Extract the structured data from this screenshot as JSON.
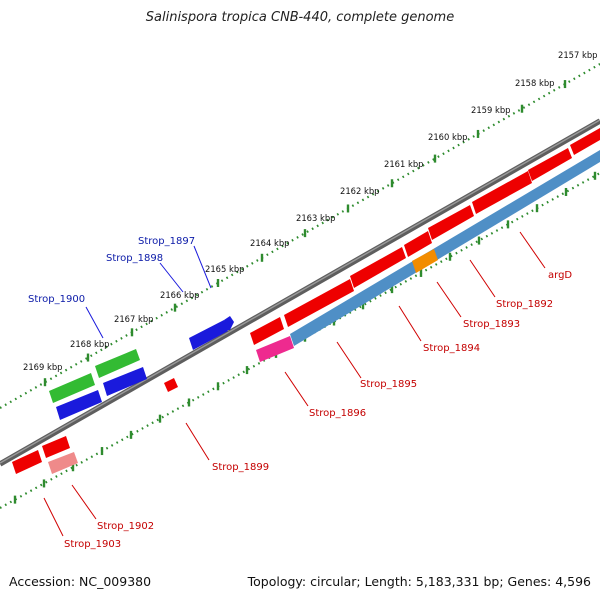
{
  "title": "Salinispora tropica CNB-440, complete genome",
  "footer": {
    "accession": "Accession: NC_009380",
    "summary": "Topology: circular; Length: 5,183,331 bp; Genes: 4,596"
  },
  "scale_labels": [
    "2157 kbp",
    "2158 kbp",
    "2159 kbp",
    "2160 kbp",
    "2161 kbp",
    "2162 kbp",
    "2163 kbp",
    "2164 kbp",
    "2165 kbp",
    "2166 kbp",
    "2167 kbp",
    "2168 kbp",
    "2169 kbp"
  ],
  "gene_labels": {
    "top": [
      "Strop_1897",
      "Strop_1898",
      "Strop_1900"
    ],
    "bottom": [
      "argD",
      "Strop_1892",
      "Strop_1893",
      "Strop_1894",
      "Strop_1895",
      "Strop_1896",
      "Strop_1899",
      "Strop_1902",
      "Strop_1903"
    ]
  },
  "colors": {
    "backbone": "#7a7a7a",
    "tick": "#2e8b2e",
    "gene_red": "#ee0000",
    "gene_blue": "#1a1adc",
    "gene_green": "#33bb33",
    "cds_steelblue": "#4f8fc6",
    "cds_orange": "#f28c00",
    "cds_magenta": "#ee2a8f",
    "cds_pink": "#ef8a8a",
    "label_blue": "#0b1aa8",
    "label_red": "#c40000"
  }
}
